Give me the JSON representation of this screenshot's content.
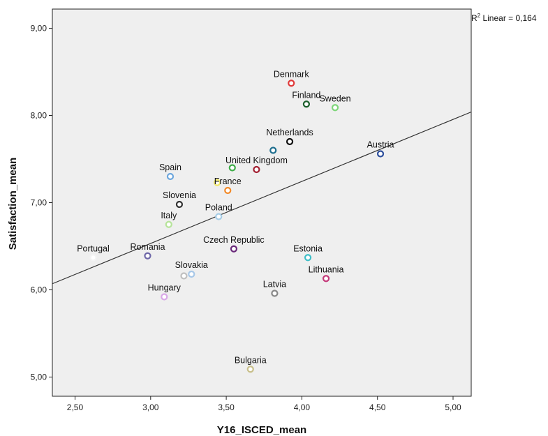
{
  "chart_data": {
    "type": "scatter",
    "xlabel": "Y16_ISCED_mean",
    "ylabel": "Satisfaction_mean",
    "xlim": [
      2.35,
      5.12
    ],
    "ylim": [
      4.78,
      9.22
    ],
    "x_ticks": [
      2.5,
      3.0,
      3.5,
      4.0,
      4.5,
      5.0
    ],
    "x_tick_labels": [
      "2,50",
      "3,00",
      "3,50",
      "4,00",
      "4,50",
      "5,00"
    ],
    "y_ticks": [
      5.0,
      6.0,
      7.0,
      8.0,
      9.0
    ],
    "y_tick_labels": [
      "5,00",
      "6,00",
      "7,00",
      "8,00",
      "9,00"
    ],
    "grid": false,
    "plot_background": "#efefef",
    "fit_line": {
      "type": "linear",
      "label_prefix": "R",
      "label_sup": "2",
      "label_rest": " Linear = 0,164",
      "x_start": 2.35,
      "y_start": 6.07,
      "x_end": 5.12,
      "y_end": 8.04,
      "color": "#333333"
    },
    "points": [
      {
        "name": "Denmark",
        "x": 3.93,
        "y": 8.37,
        "color": "#e03a3a"
      },
      {
        "name": "Finland",
        "x": 4.03,
        "y": 8.13,
        "color": "#1a5e2a"
      },
      {
        "name": "Sweden",
        "x": 4.22,
        "y": 8.09,
        "color": "#7ed67a"
      },
      {
        "name": "Netherlands",
        "x": 3.92,
        "y": 7.7,
        "color": "#111111"
      },
      {
        "name": "",
        "x": 3.81,
        "y": 7.6,
        "color": "#1f6f8f"
      },
      {
        "name": "Austria",
        "x": 4.52,
        "y": 7.56,
        "color": "#2e4f9c"
      },
      {
        "name": "United Kingdom",
        "x": 3.7,
        "y": 7.38,
        "color": "#a32032"
      },
      {
        "name": "",
        "x": 3.54,
        "y": 7.4,
        "color": "#3fae49"
      },
      {
        "name": "Spain",
        "x": 3.13,
        "y": 7.3,
        "color": "#6ea7dd"
      },
      {
        "name": "France",
        "x": 3.51,
        "y": 7.14,
        "color": "#f28a2a"
      },
      {
        "name": "",
        "x": 3.44,
        "y": 7.23,
        "color": "#f0e86a"
      },
      {
        "name": "Slovenia",
        "x": 3.19,
        "y": 6.98,
        "color": "#333333"
      },
      {
        "name": "Italy",
        "x": 3.12,
        "y": 6.75,
        "color": "#b6e49a"
      },
      {
        "name": "Poland",
        "x": 3.45,
        "y": 6.84,
        "color": "#a7cde6"
      },
      {
        "name": "Czech Republic",
        "x": 3.55,
        "y": 6.47,
        "color": "#6a2a7a"
      },
      {
        "name": "Estonia",
        "x": 4.04,
        "y": 6.37,
        "color": "#40bfc8"
      },
      {
        "name": "Portugal",
        "x": 2.62,
        "y": 6.37,
        "color": "#f4f4f4"
      },
      {
        "name": "Romania",
        "x": 2.98,
        "y": 6.39,
        "color": "#6e67a8"
      },
      {
        "name": "Lithuania",
        "x": 4.16,
        "y": 6.13,
        "color": "#c43a7a"
      },
      {
        "name": "Slovakia",
        "x": 3.27,
        "y": 6.18,
        "color": "#a8c8e8"
      },
      {
        "name": "",
        "x": 3.22,
        "y": 6.16,
        "color": "#c0c0c0"
      },
      {
        "name": "Latvia",
        "x": 3.82,
        "y": 5.96,
        "color": "#888888"
      },
      {
        "name": "Hungary",
        "x": 3.09,
        "y": 5.92,
        "color": "#d9a8e8"
      },
      {
        "name": "Bulgaria",
        "x": 3.66,
        "y": 5.09,
        "color": "#c8bf8a"
      }
    ]
  }
}
